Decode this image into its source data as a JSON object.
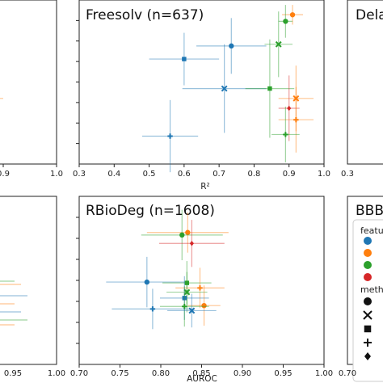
{
  "chart_data": [
    {
      "type": "scatter",
      "panel": "top-left-partial",
      "title": "",
      "xlabel": "",
      "x_ticks": [
        "0.9",
        "1.0"
      ],
      "xlim": [
        0.8,
        1.0
      ],
      "points": [
        {
          "x": 0.84,
          "y": 0.4,
          "color": "#ff7f0e",
          "marker": "circle",
          "xerr": 0.06,
          "yerr": 0.1
        }
      ]
    },
    {
      "type": "scatter",
      "panel": "top-middle",
      "title": "Freesolv (n=637)",
      "xlabel": "R²",
      "x_ticks": [
        "0.3",
        "0.4",
        "0.5",
        "0.6",
        "0.7",
        "0.8",
        "0.9",
        "1.0"
      ],
      "xlim": [
        0.3,
        1.0
      ],
      "ylim": [
        0,
        1
      ],
      "points": [
        {
          "x": 0.91,
          "y": 0.91,
          "color": "#ff7f0e",
          "marker": "circle",
          "xerr": 0.03,
          "yerr": 0.06
        },
        {
          "x": 0.89,
          "y": 0.87,
          "color": "#2ca02c",
          "marker": "circle",
          "xerr": 0.02,
          "yerr": 0.1
        },
        {
          "x": 0.87,
          "y": 0.73,
          "color": "#2ca02c",
          "marker": "x",
          "xerr": 0.04,
          "yerr": 0.2
        },
        {
          "x": 0.735,
          "y": 0.72,
          "color": "#1f77b4",
          "marker": "circle",
          "xerr": 0.1,
          "yerr": 0.17
        },
        {
          "x": 0.6,
          "y": 0.64,
          "color": "#1f77b4",
          "marker": "square",
          "xerr": 0.1,
          "yerr": 0.16
        },
        {
          "x": 0.715,
          "y": 0.46,
          "color": "#1f77b4",
          "marker": "x",
          "xerr": 0.12,
          "yerr": 0.27
        },
        {
          "x": 0.845,
          "y": 0.46,
          "color": "#2ca02c",
          "marker": "square",
          "xerr": 0.07,
          "yerr": 0.3
        },
        {
          "x": 0.92,
          "y": 0.4,
          "color": "#ff7f0e",
          "marker": "x",
          "xerr": 0.05,
          "yerr": 0.2
        },
        {
          "x": 0.9,
          "y": 0.34,
          "color": "#d62728",
          "marker": "diamond",
          "xerr": 0.03,
          "yerr": 0.2
        },
        {
          "x": 0.92,
          "y": 0.27,
          "color": "#ff7f0e",
          "marker": "plus",
          "xerr": 0.05,
          "yerr": 0.2
        },
        {
          "x": 0.89,
          "y": 0.18,
          "color": "#2ca02c",
          "marker": "plus",
          "xerr": 0.04,
          "yerr": 0.17
        },
        {
          "x": 0.56,
          "y": 0.17,
          "color": "#1f77b4",
          "marker": "plus",
          "xerr": 0.08,
          "yerr": 0.22
        }
      ]
    },
    {
      "type": "scatter",
      "panel": "top-right-partial",
      "title": "Dela",
      "x_ticks": [
        "0.3"
      ],
      "points": []
    },
    {
      "type": "scatter",
      "panel": "bottom-left-partial",
      "title": "",
      "x_ticks": [
        "0.95",
        "1.00"
      ],
      "points": []
    },
    {
      "type": "scatter",
      "panel": "bottom-middle",
      "title": "RBioDeg (n=1608)",
      "xlabel": "AUROC",
      "x_ticks": [
        "0.70",
        "0.75",
        "0.80",
        "0.85",
        "0.90",
        "0.95",
        "1.00"
      ],
      "xlim": [
        0.7,
        1.0
      ],
      "ylim": [
        0,
        1
      ],
      "points": [
        {
          "x": 0.833,
          "y": 0.785,
          "color": "#ff7f0e",
          "marker": "circle",
          "xerr": 0.05,
          "yerr": 0.12
        },
        {
          "x": 0.826,
          "y": 0.77,
          "color": "#2ca02c",
          "marker": "circle",
          "xerr": 0.05,
          "yerr": 0.15
        },
        {
          "x": 0.838,
          "y": 0.72,
          "color": "#d62728",
          "marker": "diamond",
          "xerr": 0.04,
          "yerr": 0.14
        },
        {
          "x": 0.783,
          "y": 0.49,
          "color": "#1f77b4",
          "marker": "circle",
          "xerr": 0.05,
          "yerr": 0.15
        },
        {
          "x": 0.832,
          "y": 0.485,
          "color": "#2ca02c",
          "marker": "square",
          "xerr": 0.03,
          "yerr": 0.13
        },
        {
          "x": 0.848,
          "y": 0.455,
          "color": "#ff7f0e",
          "marker": "plus",
          "xerr": 0.03,
          "yerr": 0.12
        },
        {
          "x": 0.832,
          "y": 0.43,
          "color": "#2ca02c",
          "marker": "x",
          "xerr": 0.025,
          "yerr": 0.12
        },
        {
          "x": 0.829,
          "y": 0.395,
          "color": "#1f77b4",
          "marker": "square",
          "xerr": 0.03,
          "yerr": 0.13
        },
        {
          "x": 0.853,
          "y": 0.35,
          "color": "#ff7f0e",
          "marker": "circle",
          "xerr": 0.02,
          "yerr": 0.12
        },
        {
          "x": 0.829,
          "y": 0.345,
          "color": "#2ca02c",
          "marker": "plus",
          "xerr": 0.03,
          "yerr": 0.12
        },
        {
          "x": 0.79,
          "y": 0.33,
          "color": "#1f77b4",
          "marker": "plus",
          "xerr": 0.05,
          "yerr": 0.12
        },
        {
          "x": 0.838,
          "y": 0.32,
          "color": "#1f77b4",
          "marker": "x",
          "xerr": 0.03,
          "yerr": 0.1
        }
      ]
    },
    {
      "type": "scatter",
      "panel": "bottom-right-partial",
      "title": "BBBI",
      "legend": {
        "feature_title": "featu",
        "feature_colors": [
          "#1f77b4",
          "#ff7f0e",
          "#2ca02c",
          "#d62728"
        ],
        "method_title": "meth",
        "method_markers": [
          "circle",
          "x",
          "square",
          "plus",
          "diamond"
        ]
      },
      "x_ticks": [
        "0.70"
      ],
      "points": []
    }
  ]
}
